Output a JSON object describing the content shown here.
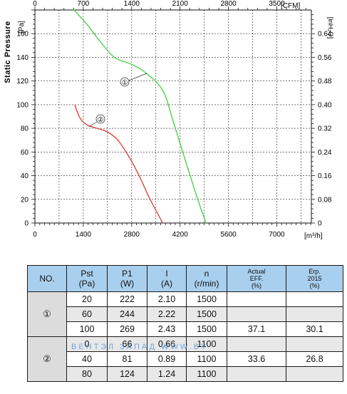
{
  "chart_data": {
    "type": "line",
    "title": "",
    "ylabel": "Static Pressure",
    "y_unit_label": "[Pa]",
    "x_unit_label": "[m³/h]",
    "top_unit_label": "[CFM]",
    "right_unit_label": "[inH₂O]",
    "xlim": [
      0,
      8000
    ],
    "ylim": [
      0,
      180
    ],
    "x_ticks": [
      "0",
      "1400",
      "2800",
      "4200",
      "5600",
      "7000"
    ],
    "x_tick_values": [
      0,
      1400,
      2800,
      4200,
      5600,
      7000
    ],
    "y_ticks": [
      "0",
      "20",
      "40",
      "60",
      "80",
      "100",
      "120",
      "140",
      "160"
    ],
    "y_tick_values": [
      0,
      20,
      40,
      60,
      80,
      100,
      120,
      140,
      160
    ],
    "top_ticks": [
      "0",
      "700",
      "1400",
      "2100",
      "2800",
      "3500"
    ],
    "top_tick_values": [
      0,
      700,
      1400,
      2100,
      2800,
      3500
    ],
    "right_ticks": [
      "0",
      "0.08",
      "0.16",
      "0.24",
      "0.32",
      "0.40",
      "0.48",
      "0.56",
      "0.64"
    ],
    "right_tick_values": [
      0,
      0.08,
      0.16,
      0.24,
      0.32,
      0.4,
      0.48,
      0.56,
      0.64
    ],
    "grid": true,
    "series": [
      {
        "name": "①",
        "color": "#4cd34c",
        "x": [
          1100,
          1500,
          1900,
          2300,
          2800,
          3200,
          3700,
          4000,
          4300,
          4700,
          4950
        ],
        "y": [
          181,
          168,
          153,
          140,
          134,
          127,
          112,
          86,
          58,
          21,
          0
        ]
      },
      {
        "name": "②",
        "color": "#e0453b",
        "x": [
          1150,
          1300,
          1500,
          1800,
          2100,
          2400,
          2700,
          3000,
          3300,
          3550,
          3700
        ],
        "y": [
          100,
          89,
          83,
          80,
          77,
          70,
          57,
          41,
          22,
          8,
          0
        ]
      }
    ]
  },
  "table": {
    "headers": {
      "no": "NO.",
      "pst": "Pst\n(Pa)",
      "p1": "P1\n(W)",
      "i": "I\n(A)",
      "n": "n\n(r/min)",
      "eff": "Actual\nEFF.\n(%)",
      "erp": "Erp.\n2015\n(%)"
    },
    "groups": [
      {
        "label": "①",
        "rows": [
          {
            "pst": "20",
            "p1": "222",
            "i": "2.10",
            "n": "1500",
            "eff": "",
            "erp": ""
          },
          {
            "pst": "60",
            "p1": "244",
            "i": "2.22",
            "n": "1500",
            "eff": "",
            "erp": ""
          },
          {
            "pst": "100",
            "p1": "269",
            "i": "2.43",
            "n": "1500",
            "eff": "37.1",
            "erp": "30.1"
          }
        ]
      },
      {
        "label": "②",
        "rows": [
          {
            "pst": "0",
            "p1": "66",
            "i": "0.66",
            "n": "1100",
            "eff": "",
            "erp": ""
          },
          {
            "pst": "40",
            "p1": "81",
            "i": "0.89",
            "n": "1100",
            "eff": "33.6",
            "erp": "26.8"
          },
          {
            "pst": "80",
            "p1": "124",
            "i": "1.24",
            "n": "1100",
            "eff": "",
            "erp": ""
          }
        ]
      }
    ]
  },
  "watermark": "ВЕНТЭЛ ЗАПАД  WWW.BY"
}
